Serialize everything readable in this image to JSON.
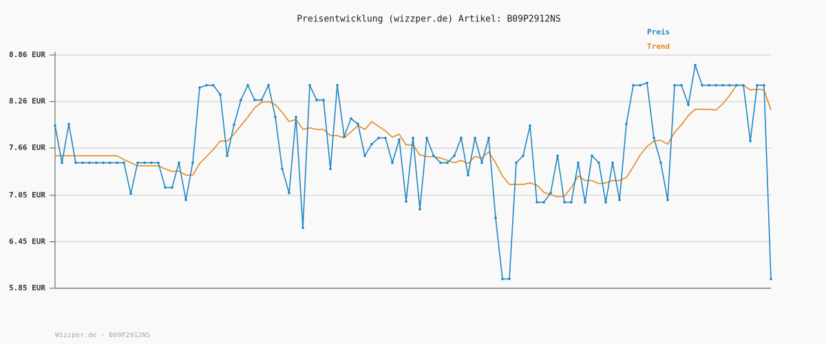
{
  "chart_data": {
    "type": "line",
    "title": "Preisentwicklung (wizzper.de) Artikel: B09P2912NS",
    "footer": "Wizzper.de - B09P2912NS",
    "ylim": [
      5.85,
      8.86
    ],
    "yticks": [
      {
        "value": 5.85,
        "label": "5.85 EUR"
      },
      {
        "value": 6.45,
        "label": "6.45 EUR"
      },
      {
        "value": 7.05,
        "label": "7.05 EUR"
      },
      {
        "value": 7.66,
        "label": "7.66 EUR"
      },
      {
        "value": 8.26,
        "label": "8.26 EUR"
      },
      {
        "value": 8.86,
        "label": "8.86 EUR"
      }
    ],
    "grid": true,
    "series": [
      {
        "name": "Preis",
        "color": "#1f86c2",
        "markers": true,
        "values": [
          7.95,
          7.47,
          7.97,
          7.47,
          7.47,
          7.47,
          7.47,
          7.47,
          7.47,
          7.47,
          7.47,
          7.07,
          7.47,
          7.47,
          7.47,
          7.47,
          7.15,
          7.15,
          7.47,
          6.99,
          7.47,
          8.44,
          8.47,
          8.47,
          8.35,
          7.56,
          7.96,
          8.28,
          8.47,
          8.28,
          8.28,
          8.47,
          8.06,
          7.39,
          7.08,
          8.06,
          6.63,
          8.47,
          8.28,
          8.28,
          7.39,
          8.47,
          7.81,
          8.04,
          7.97,
          7.56,
          7.71,
          7.79,
          7.79,
          7.47,
          7.77,
          6.97,
          7.79,
          6.87,
          7.79,
          7.56,
          7.47,
          7.47,
          7.56,
          7.79,
          7.31,
          7.79,
          7.47,
          7.79,
          6.76,
          5.97,
          5.97,
          7.47,
          7.56,
          7.95,
          6.96,
          6.96,
          7.08,
          7.56,
          6.96,
          6.96,
          7.47,
          6.96,
          7.56,
          7.47,
          6.96,
          7.47,
          6.99,
          7.97,
          8.47,
          8.47,
          8.5,
          7.79,
          7.47,
          6.99,
          8.47,
          8.47,
          8.22,
          8.73,
          8.47,
          8.47,
          8.47,
          8.47,
          8.47,
          8.47,
          8.47,
          7.75,
          8.47,
          8.47,
          5.97
        ]
      },
      {
        "name": "Trend",
        "color": "#e08a1e",
        "markers": false,
        "values": [
          7.56,
          7.56,
          7.56,
          7.56,
          7.56,
          7.56,
          7.56,
          7.56,
          7.56,
          7.56,
          7.51,
          7.47,
          7.43,
          7.43,
          7.43,
          7.43,
          7.39,
          7.36,
          7.36,
          7.31,
          7.31,
          7.46,
          7.55,
          7.64,
          7.75,
          7.75,
          7.84,
          7.95,
          8.06,
          8.18,
          8.25,
          8.26,
          8.22,
          8.12,
          8.0,
          8.03,
          7.9,
          7.92,
          7.9,
          7.9,
          7.82,
          7.82,
          7.79,
          7.87,
          7.95,
          7.9,
          8.0,
          7.94,
          7.88,
          7.8,
          7.84,
          7.7,
          7.7,
          7.57,
          7.55,
          7.55,
          7.53,
          7.5,
          7.47,
          7.5,
          7.46,
          7.55,
          7.53,
          7.61,
          7.47,
          7.3,
          7.19,
          7.19,
          7.19,
          7.21,
          7.18,
          7.09,
          7.06,
          7.03,
          7.04,
          7.15,
          7.3,
          7.24,
          7.24,
          7.2,
          7.21,
          7.24,
          7.24,
          7.28,
          7.42,
          7.57,
          7.68,
          7.75,
          7.76,
          7.71,
          7.86,
          7.96,
          8.08,
          8.16,
          8.16,
          8.16,
          8.15,
          8.23,
          8.34,
          8.47,
          8.47,
          8.41,
          8.42,
          8.41,
          8.15
        ]
      }
    ]
  }
}
